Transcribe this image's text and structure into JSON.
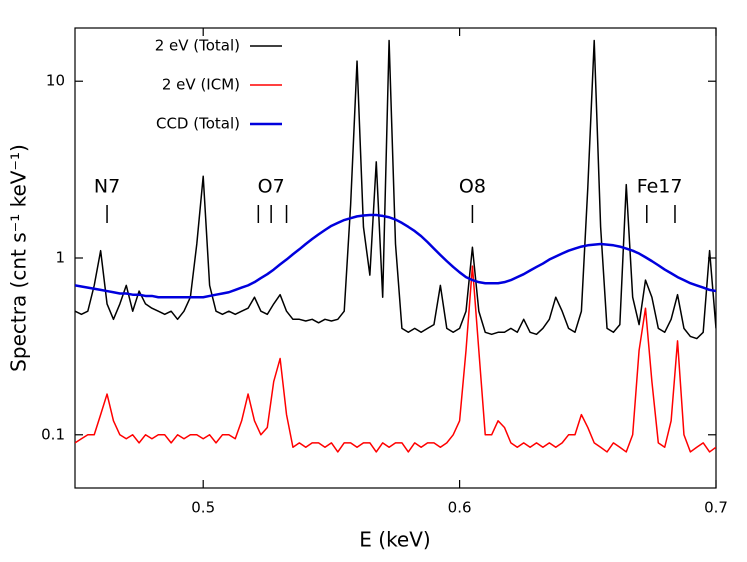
{
  "chart_data": {
    "type": "line",
    "log_y": true,
    "legend": "upper left",
    "xlabel": "E (keV)",
    "ylabel": "Spectra (cnt s⁻¹ keV⁻¹)",
    "xlim": [
      0.45,
      0.7
    ],
    "xticks": [
      0.5,
      0.6,
      0.7
    ],
    "ylim": [
      0.05,
      20
    ],
    "yticks": [
      0.1,
      1,
      10
    ],
    "x": [
      0.45,
      0.4525,
      0.455,
      0.4575,
      0.46,
      0.4625,
      0.465,
      0.4675,
      0.47,
      0.4725,
      0.475,
      0.4775,
      0.48,
      0.4825,
      0.485,
      0.4875,
      0.49,
      0.4925,
      0.495,
      0.4975,
      0.5,
      0.5025,
      0.505,
      0.5075,
      0.51,
      0.5125,
      0.515,
      0.5175,
      0.52,
      0.5225,
      0.525,
      0.5275,
      0.53,
      0.5325,
      0.535,
      0.5375,
      0.54,
      0.5425,
      0.545,
      0.5475,
      0.55,
      0.5525,
      0.555,
      0.5575,
      0.56,
      0.5625,
      0.565,
      0.5675,
      0.57,
      0.5725,
      0.575,
      0.5775,
      0.58,
      0.5825,
      0.585,
      0.5875,
      0.59,
      0.5925,
      0.595,
      0.5975,
      0.6,
      0.6025,
      0.605,
      0.6075,
      0.61,
      0.6125,
      0.615,
      0.6175,
      0.62,
      0.6225,
      0.625,
      0.6275,
      0.63,
      0.6325,
      0.635,
      0.6375,
      0.64,
      0.6425,
      0.645,
      0.6475,
      0.65,
      0.6525,
      0.655,
      0.6575,
      0.66,
      0.6625,
      0.665,
      0.6675,
      0.67,
      0.6725,
      0.675,
      0.6775,
      0.68,
      0.6825,
      0.685,
      0.6875,
      0.69,
      0.6925,
      0.695,
      0.6975,
      0.7
    ],
    "series": [
      {
        "name": "2 eV (Total)",
        "color": "#000000",
        "width": 1.5,
        "values": [
          0.5,
          0.48,
          0.5,
          0.7,
          1.1,
          0.55,
          0.45,
          0.55,
          0.7,
          0.5,
          0.65,
          0.55,
          0.52,
          0.5,
          0.48,
          0.5,
          0.45,
          0.5,
          0.6,
          1.2,
          2.9,
          0.7,
          0.5,
          0.48,
          0.5,
          0.48,
          0.5,
          0.52,
          0.6,
          0.5,
          0.48,
          0.55,
          0.62,
          0.5,
          0.45,
          0.45,
          0.44,
          0.45,
          0.43,
          0.45,
          0.44,
          0.45,
          0.5,
          2,
          13,
          1.5,
          0.8,
          3.5,
          0.6,
          17,
          1.2,
          0.4,
          0.38,
          0.4,
          0.38,
          0.4,
          0.42,
          0.7,
          0.4,
          0.38,
          0.4,
          0.5,
          1.15,
          0.5,
          0.38,
          0.37,
          0.38,
          0.38,
          0.4,
          0.38,
          0.45,
          0.38,
          0.37,
          0.4,
          0.45,
          0.6,
          0.5,
          0.4,
          0.38,
          0.5,
          2.5,
          17,
          1.5,
          0.4,
          0.38,
          0.42,
          2.6,
          0.6,
          0.42,
          0.75,
          0.6,
          0.4,
          0.38,
          0.45,
          0.62,
          0.4,
          0.36,
          0.35,
          0.38,
          1.1,
          0.4
        ]
      },
      {
        "name": "2 eV (ICM)",
        "color": "#ff0000",
        "width": 1.5,
        "values": [
          0.09,
          0.095,
          0.1,
          0.1,
          0.13,
          0.17,
          0.12,
          0.1,
          0.095,
          0.1,
          0.09,
          0.1,
          0.095,
          0.1,
          0.1,
          0.09,
          0.1,
          0.095,
          0.1,
          0.1,
          0.095,
          0.1,
          0.09,
          0.1,
          0.1,
          0.095,
          0.12,
          0.17,
          0.12,
          0.1,
          0.11,
          0.2,
          0.27,
          0.13,
          0.085,
          0.09,
          0.085,
          0.09,
          0.09,
          0.085,
          0.09,
          0.08,
          0.09,
          0.09,
          0.085,
          0.09,
          0.09,
          0.08,
          0.09,
          0.085,
          0.09,
          0.09,
          0.08,
          0.09,
          0.085,
          0.09,
          0.09,
          0.085,
          0.09,
          0.1,
          0.12,
          0.3,
          0.9,
          0.3,
          0.1,
          0.1,
          0.12,
          0.11,
          0.09,
          0.085,
          0.09,
          0.085,
          0.09,
          0.085,
          0.09,
          0.085,
          0.09,
          0.1,
          0.1,
          0.13,
          0.11,
          0.09,
          0.085,
          0.08,
          0.09,
          0.085,
          0.08,
          0.1,
          0.3,
          0.52,
          0.2,
          0.09,
          0.085,
          0.12,
          0.34,
          0.1,
          0.08,
          0.085,
          0.09,
          0.08,
          0.085
        ]
      },
      {
        "name": "CCD (Total)",
        "color": "#0000dd",
        "width": 2.5,
        "values": [
          0.7,
          0.69,
          0.68,
          0.67,
          0.66,
          0.65,
          0.64,
          0.63,
          0.63,
          0.62,
          0.62,
          0.61,
          0.61,
          0.6,
          0.6,
          0.6,
          0.6,
          0.6,
          0.6,
          0.6,
          0.6,
          0.61,
          0.62,
          0.63,
          0.64,
          0.66,
          0.68,
          0.7,
          0.73,
          0.77,
          0.81,
          0.86,
          0.92,
          0.98,
          1.05,
          1.12,
          1.2,
          1.28,
          1.36,
          1.44,
          1.52,
          1.58,
          1.64,
          1.68,
          1.72,
          1.74,
          1.75,
          1.75,
          1.73,
          1.7,
          1.65,
          1.58,
          1.5,
          1.42,
          1.33,
          1.23,
          1.13,
          1.04,
          0.96,
          0.89,
          0.83,
          0.78,
          0.75,
          0.73,
          0.72,
          0.72,
          0.72,
          0.73,
          0.75,
          0.78,
          0.81,
          0.85,
          0.89,
          0.93,
          0.98,
          1.02,
          1.06,
          1.1,
          1.13,
          1.16,
          1.18,
          1.19,
          1.2,
          1.19,
          1.18,
          1.16,
          1.13,
          1.1,
          1.06,
          1.01,
          0.96,
          0.91,
          0.86,
          0.82,
          0.78,
          0.75,
          0.72,
          0.7,
          0.68,
          0.66,
          0.65
        ]
      }
    ],
    "annotations": [
      {
        "label": "N7",
        "x": 0.4625,
        "lines": [
          0.4625
        ]
      },
      {
        "label": "O7",
        "x": 0.5265,
        "lines": [
          0.5215,
          0.5265,
          0.5325
        ]
      },
      {
        "label": "O8",
        "x": 0.605,
        "lines": [
          0.605
        ]
      },
      {
        "label": "Fe17",
        "x": 0.678,
        "lines": [
          0.673,
          0.684
        ]
      }
    ]
  }
}
